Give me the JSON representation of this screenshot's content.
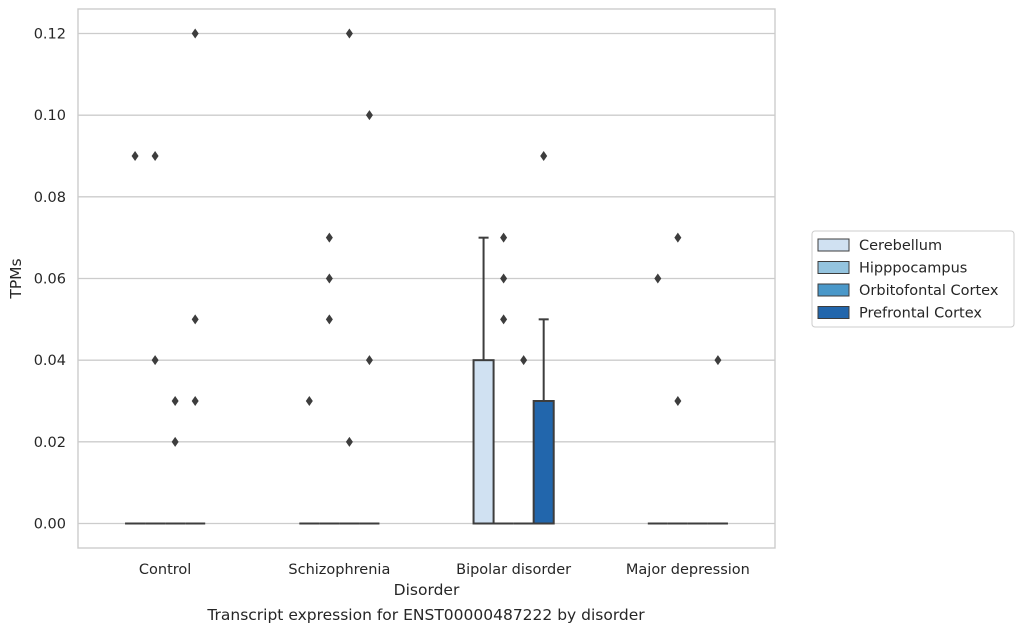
{
  "caption": "Transcript expression for ENST00000487222 by disorder",
  "chart_data": {
    "type": "box",
    "xlabel": "Disorder",
    "ylabel": "TPMs",
    "ylim": [
      -0.006,
      0.126
    ],
    "yticks": [
      0.0,
      0.02,
      0.04,
      0.06,
      0.08,
      0.1,
      0.12
    ],
    "ytick_labels": [
      "0.00",
      "0.02",
      "0.04",
      "0.06",
      "0.08",
      "0.10",
      "0.12"
    ],
    "grid": "horizontal",
    "categories": [
      "Control",
      "Schizophrenia",
      "Bipolar disorder",
      "Major depression"
    ],
    "legend_placement": "right, outside",
    "series": [
      {
        "name": "Cerebellum",
        "color": "#d0e1f2",
        "boxes": [
          {
            "q1": 0,
            "median": 0,
            "q3": 0,
            "whisker_low": 0,
            "whisker_high": 0,
            "outliers": [
              0.09
            ]
          },
          {
            "q1": 0,
            "median": 0,
            "q3": 0,
            "whisker_low": 0,
            "whisker_high": 0,
            "outliers": [
              0.03
            ]
          },
          {
            "q1": 0,
            "median": 0,
            "q3": 0.04,
            "whisker_low": 0,
            "whisker_high": 0.07,
            "outliers": []
          },
          {
            "q1": 0,
            "median": 0,
            "q3": 0,
            "whisker_low": 0,
            "whisker_high": 0,
            "outliers": [
              0.06
            ]
          }
        ]
      },
      {
        "name": "Hipppocampus",
        "color": "#94c4df",
        "boxes": [
          {
            "q1": 0,
            "median": 0,
            "q3": 0,
            "whisker_low": 0,
            "whisker_high": 0,
            "outliers": [
              0.09,
              0.04
            ]
          },
          {
            "q1": 0,
            "median": 0,
            "q3": 0,
            "whisker_low": 0,
            "whisker_high": 0,
            "outliers": [
              0.07,
              0.06,
              0.05
            ]
          },
          {
            "q1": 0,
            "median": 0,
            "q3": 0,
            "whisker_low": 0,
            "whisker_high": 0,
            "outliers": [
              0.07,
              0.06,
              0.05
            ]
          },
          {
            "q1": 0,
            "median": 0,
            "q3": 0,
            "whisker_low": 0,
            "whisker_high": 0,
            "outliers": [
              0.07,
              0.03
            ]
          }
        ]
      },
      {
        "name": "Orbitofontal Cortex",
        "color": "#4a98c9",
        "boxes": [
          {
            "q1": 0,
            "median": 0,
            "q3": 0,
            "whisker_low": 0,
            "whisker_high": 0,
            "outliers": [
              0.03,
              0.02
            ]
          },
          {
            "q1": 0,
            "median": 0,
            "q3": 0,
            "whisker_low": 0,
            "whisker_high": 0,
            "outliers": [
              0.12,
              0.02
            ]
          },
          {
            "q1": 0,
            "median": 0,
            "q3": 0,
            "whisker_low": 0,
            "whisker_high": 0,
            "outliers": [
              0.04
            ]
          },
          {
            "q1": 0,
            "median": 0,
            "q3": 0,
            "whisker_low": 0,
            "whisker_high": 0,
            "outliers": []
          }
        ]
      },
      {
        "name": "Prefrontal Cortex",
        "color": "#2266ac",
        "boxes": [
          {
            "q1": 0,
            "median": 0,
            "q3": 0,
            "whisker_low": 0,
            "whisker_high": 0,
            "outliers": [
              0.12,
              0.05,
              0.03
            ]
          },
          {
            "q1": 0,
            "median": 0,
            "q3": 0,
            "whisker_low": 0,
            "whisker_high": 0,
            "outliers": [
              0.1,
              0.04
            ]
          },
          {
            "q1": 0,
            "median": 0,
            "q3": 0.03,
            "whisker_low": 0,
            "whisker_high": 0.05,
            "outliers": [
              0.09
            ]
          },
          {
            "q1": 0,
            "median": 0,
            "q3": 0,
            "whisker_low": 0,
            "whisker_high": 0,
            "outliers": [
              0.04
            ]
          }
        ]
      }
    ]
  }
}
